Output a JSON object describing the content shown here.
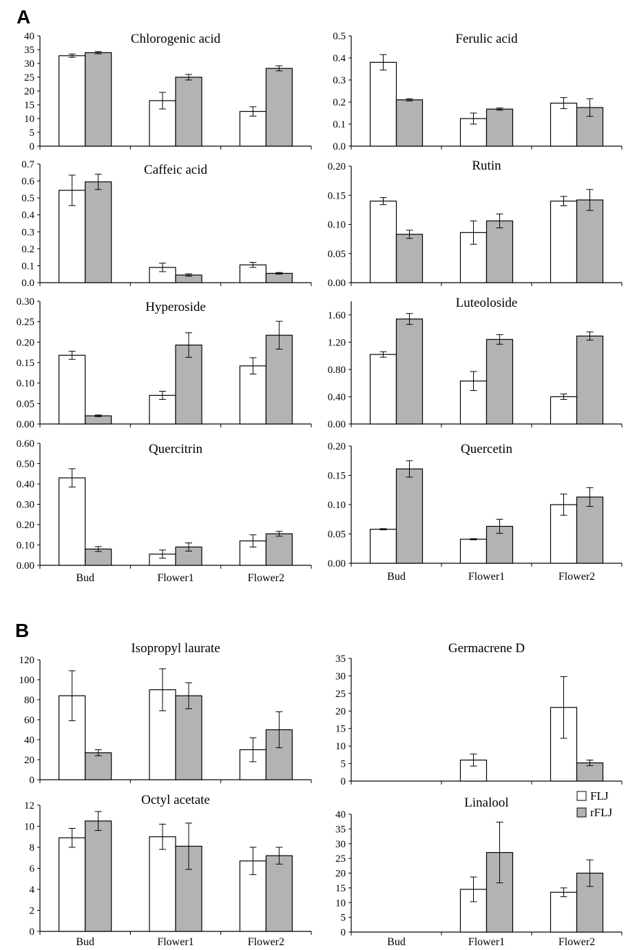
{
  "panel_labels": [
    "A",
    "B"
  ],
  "colors": {
    "FLJ": "#ffffff",
    "rFLJ": "#b3b3b3",
    "axis": "#000000"
  },
  "chart_data": [
    {
      "type": "bar",
      "title": "Chlorogenic acid",
      "categories": [
        "Bud",
        "Flower1",
        "Flower2"
      ],
      "ylim": [
        0,
        40
      ],
      "yticks": [
        "0",
        "5",
        "10",
        "15",
        "20",
        "25",
        "30",
        "35",
        "40"
      ],
      "series": [
        {
          "name": "FLJ",
          "values": [
            32.8,
            16.5,
            12.6
          ],
          "err": [
            0.6,
            3.0,
            1.7
          ]
        },
        {
          "name": "rFLJ",
          "values": [
            33.9,
            25.0,
            28.2
          ],
          "err": [
            0.4,
            1.0,
            0.9
          ]
        }
      ]
    },
    {
      "type": "bar",
      "title": "Ferulic acid",
      "categories": [
        "Bud",
        "Flower1",
        "Flower2"
      ],
      "ylim": [
        0,
        0.5
      ],
      "yticks": [
        "0.0",
        "0.1",
        "0.2",
        "0.3",
        "0.4",
        "0.5"
      ],
      "series": [
        {
          "name": "FLJ",
          "values": [
            0.38,
            0.125,
            0.195
          ],
          "err": [
            0.035,
            0.025,
            0.025
          ]
        },
        {
          "name": "rFLJ",
          "values": [
            0.21,
            0.168,
            0.175
          ],
          "err": [
            0.005,
            0.005,
            0.04
          ]
        }
      ]
    },
    {
      "type": "bar",
      "title": "Caffeic acid",
      "categories": [
        "Bud",
        "Flower1",
        "Flower2"
      ],
      "ylim": [
        0,
        0.7
      ],
      "yticks": [
        "0.0",
        "0.1",
        "0.2",
        "0.3",
        "0.4",
        "0.5",
        "0.6",
        "0.7"
      ],
      "series": [
        {
          "name": "FLJ",
          "values": [
            0.545,
            0.09,
            0.105
          ],
          "err": [
            0.09,
            0.025,
            0.015
          ]
        },
        {
          "name": "rFLJ",
          "values": [
            0.595,
            0.045,
            0.055
          ],
          "err": [
            0.045,
            0.007,
            0.005
          ]
        }
      ]
    },
    {
      "type": "bar",
      "title": "Rutin",
      "categories": [
        "Bud",
        "Flower1",
        "Flower2"
      ],
      "ylim": [
        0,
        0.2
      ],
      "yticks": [
        "0.00",
        "0.05",
        "0.10",
        "0.15",
        "0.20"
      ],
      "series": [
        {
          "name": "FLJ",
          "values": [
            0.14,
            0.086,
            0.14
          ],
          "err": [
            0.006,
            0.02,
            0.008
          ]
        },
        {
          "name": "rFLJ",
          "values": [
            0.083,
            0.106,
            0.142
          ],
          "err": [
            0.007,
            0.012,
            0.018
          ]
        }
      ]
    },
    {
      "type": "bar",
      "title": "Hyperoside",
      "categories": [
        "Bud",
        "Flower1",
        "Flower2"
      ],
      "ylim": [
        0,
        0.3
      ],
      "yticks": [
        "0.00",
        "0.05",
        "0.10",
        "0.15",
        "0.20",
        "0.25",
        "0.30"
      ],
      "series": [
        {
          "name": "FLJ",
          "values": [
            0.168,
            0.07,
            0.142
          ],
          "err": [
            0.01,
            0.01,
            0.02
          ]
        },
        {
          "name": "rFLJ",
          "values": [
            0.02,
            0.193,
            0.217
          ],
          "err": [
            0.002,
            0.03,
            0.034
          ]
        }
      ]
    },
    {
      "type": "bar",
      "title": "Luteoloside",
      "categories": [
        "Bud",
        "Flower1",
        "Flower2"
      ],
      "ylim": [
        0,
        1.8
      ],
      "yticks": [
        "0.00",
        "0.40",
        "0.80",
        "1.20",
        "1.60"
      ],
      "series": [
        {
          "name": "FLJ",
          "values": [
            1.02,
            0.63,
            0.4
          ],
          "err": [
            0.04,
            0.14,
            0.04
          ]
        },
        {
          "name": "rFLJ",
          "values": [
            1.54,
            1.24,
            1.29
          ],
          "err": [
            0.08,
            0.07,
            0.06
          ]
        }
      ]
    },
    {
      "type": "bar",
      "title": "Quercitrin",
      "categories": [
        "Bud",
        "Flower1",
        "Flower2"
      ],
      "ylim": [
        0,
        0.6
      ],
      "yticks": [
        "0.00",
        "0.10",
        "0.20",
        "0.30",
        "0.40",
        "0.50",
        "0.60"
      ],
      "series": [
        {
          "name": "FLJ",
          "values": [
            0.43,
            0.055,
            0.12
          ],
          "err": [
            0.045,
            0.02,
            0.03
          ]
        },
        {
          "name": "rFLJ",
          "values": [
            0.08,
            0.09,
            0.155
          ],
          "err": [
            0.012,
            0.02,
            0.012
          ]
        }
      ]
    },
    {
      "type": "bar",
      "title": "Quercetin",
      "categories": [
        "Bud",
        "Flower1",
        "Flower2"
      ],
      "ylim": [
        0,
        0.2
      ],
      "yticks": [
        "0.00",
        "0.05",
        "0.10",
        "0.15",
        "0.20"
      ],
      "series": [
        {
          "name": "FLJ",
          "values": [
            0.058,
            0.041,
            0.1
          ],
          "err": [
            0.001,
            0.001,
            0.018
          ]
        },
        {
          "name": "rFLJ",
          "values": [
            0.161,
            0.063,
            0.113
          ],
          "err": [
            0.014,
            0.012,
            0.016
          ]
        }
      ]
    },
    {
      "type": "bar",
      "title": "Isopropyl laurate",
      "categories": [
        "Bud",
        "Flower1",
        "Flower2"
      ],
      "ylim": [
        0,
        120
      ],
      "yticks": [
        "0",
        "20",
        "40",
        "60",
        "80",
        "100",
        "120"
      ],
      "series": [
        {
          "name": "FLJ",
          "values": [
            84,
            90,
            30
          ],
          "err": [
            25,
            21,
            12
          ]
        },
        {
          "name": "rFLJ",
          "values": [
            27,
            84,
            50
          ],
          "err": [
            3,
            13,
            18
          ]
        }
      ]
    },
    {
      "type": "bar",
      "title": "Germacrene D",
      "categories": [
        "Bud",
        "Flower1",
        "Flower2"
      ],
      "ylim": [
        0,
        35
      ],
      "yticks": [
        "0",
        "5",
        "10",
        "15",
        "20",
        "25",
        "30",
        "35"
      ],
      "series": [
        {
          "name": "FLJ",
          "values": [
            0,
            6,
            21
          ],
          "err": [
            0,
            1.7,
            8.8
          ]
        },
        {
          "name": "rFLJ",
          "values": [
            0,
            0,
            5.2
          ],
          "err": [
            0,
            0,
            0.8
          ]
        }
      ]
    },
    {
      "type": "bar",
      "title": "Octyl acetate",
      "categories": [
        "Bud",
        "Flower1",
        "Flower2"
      ],
      "ylim": [
        0,
        12
      ],
      "yticks": [
        "0",
        "2",
        "4",
        "6",
        "8",
        "10",
        "12"
      ],
      "series": [
        {
          "name": "FLJ",
          "values": [
            8.9,
            9.0,
            6.7
          ],
          "err": [
            0.9,
            1.2,
            1.3
          ]
        },
        {
          "name": "rFLJ",
          "values": [
            10.5,
            8.1,
            7.2
          ],
          "err": [
            0.9,
            2.2,
            0.8
          ]
        }
      ]
    },
    {
      "type": "bar",
      "title": "Linalool",
      "categories": [
        "Bud",
        "Flower1",
        "Flower2"
      ],
      "ylim": [
        0,
        40
      ],
      "yticks": [
        "0",
        "5",
        "10",
        "15",
        "20",
        "25",
        "30",
        "35",
        "40"
      ],
      "series": [
        {
          "name": "FLJ",
          "values": [
            0,
            14.5,
            13.5
          ],
          "err": [
            0,
            4.2,
            1.5
          ]
        },
        {
          "name": "rFLJ",
          "values": [
            0,
            27,
            20
          ],
          "err": [
            0,
            10.3,
            4.5
          ]
        }
      ]
    }
  ],
  "legend": [
    {
      "label": "FLJ",
      "key": "FLJ"
    },
    {
      "label": "rFLJ",
      "key": "rFLJ"
    }
  ]
}
